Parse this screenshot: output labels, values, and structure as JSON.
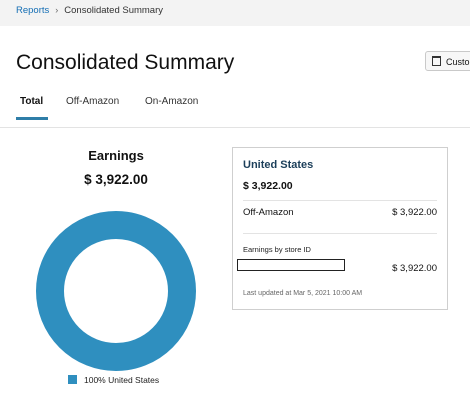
{
  "breadcrumb": {
    "root": "Reports",
    "separator": "›",
    "current": "Consolidated Summary"
  },
  "page": {
    "title": "Consolidated Summary",
    "customize_label": "Customize"
  },
  "tabs": [
    {
      "label": "Total",
      "active": true
    },
    {
      "label": "Off-Amazon",
      "active": false
    },
    {
      "label": "On-Amazon",
      "active": false
    }
  ],
  "earnings": {
    "title": "Earnings",
    "total": "$ 3,922.00"
  },
  "chart_data": {
    "type": "pie",
    "categories": [
      "United States"
    ],
    "values": [
      100
    ],
    "legend": [
      "100% United States"
    ],
    "colors": [
      "#2f8fbf"
    ],
    "legend_position": "bottom"
  },
  "card": {
    "region": "United States",
    "total": "$ 3,922.00",
    "rows": [
      {
        "label": "Off-Amazon",
        "value": "$ 3,922.00"
      }
    ],
    "store_section_label": "Earnings by store ID",
    "store_value": "$ 3,922.00",
    "last_updated": "Last updated at Mar 5, 2021 10:00 AM"
  },
  "colors": {
    "accent": "#2f7ea8",
    "link": "#146eb4",
    "donut": "#2f8fbf"
  }
}
